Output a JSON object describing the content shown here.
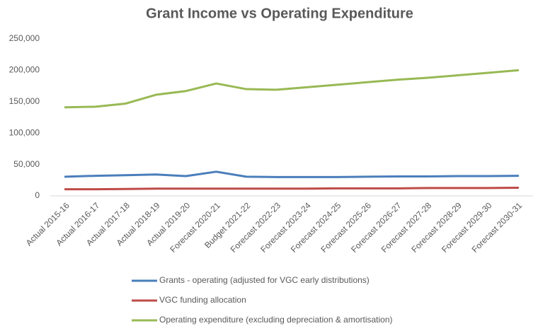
{
  "chart_data": {
    "type": "line",
    "title": "Grant Income vs Operating Expenditure",
    "categories": [
      "Actual 2015-16",
      "Actual 2016-17",
      "Actual 2017-18",
      "Actual 2018-19",
      "Actual 2019-20",
      "Forecast 2020-21",
      "Budget 2021-22",
      "Forecast 2022-23",
      "Forecast 2023-24",
      "Forecast 2024-25",
      "Forecast 2025-26",
      "Forecast 2026-27",
      "Forecast 2027-28",
      "Forecast 2028-29",
      "Forecast 2029-30",
      "Forecast 2030-31"
    ],
    "series": [
      {
        "name": "Grants - operating (adjusted for VGC early distributions)",
        "color": "#4a7ebb",
        "values": [
          30500,
          32000,
          33000,
          34000,
          31500,
          38500,
          30500,
          30000,
          30000,
          30000,
          30500,
          31000,
          31000,
          31500,
          31500,
          32000
        ]
      },
      {
        "name": "VGC funding allocation",
        "color": "#be4b48",
        "values": [
          10500,
          10500,
          11000,
          11500,
          11500,
          11500,
          11500,
          11500,
          11500,
          12000,
          12000,
          12000,
          12500,
          12500,
          12500,
          13000
        ]
      },
      {
        "name": "Operating expenditure (excluding depreciation & amortisation)",
        "color": "#98b954",
        "values": [
          141000,
          142000,
          147000,
          161000,
          167000,
          179000,
          170000,
          169000,
          173000,
          177000,
          181000,
          185000,
          188000,
          192000,
          196000,
          200000
        ]
      }
    ],
    "ylim": [
      0,
      250000
    ],
    "yticks": [
      0,
      {
        "value": 50000,
        "label": "50,000"
      },
      {
        "value": 100000,
        "label": "100,000"
      },
      {
        "value": 150000,
        "label": "150,000"
      },
      {
        "value": 200000,
        "label": "200,000"
      },
      {
        "value": 250000,
        "label": "250,000"
      }
    ],
    "grid": false,
    "legend": "bottom"
  }
}
